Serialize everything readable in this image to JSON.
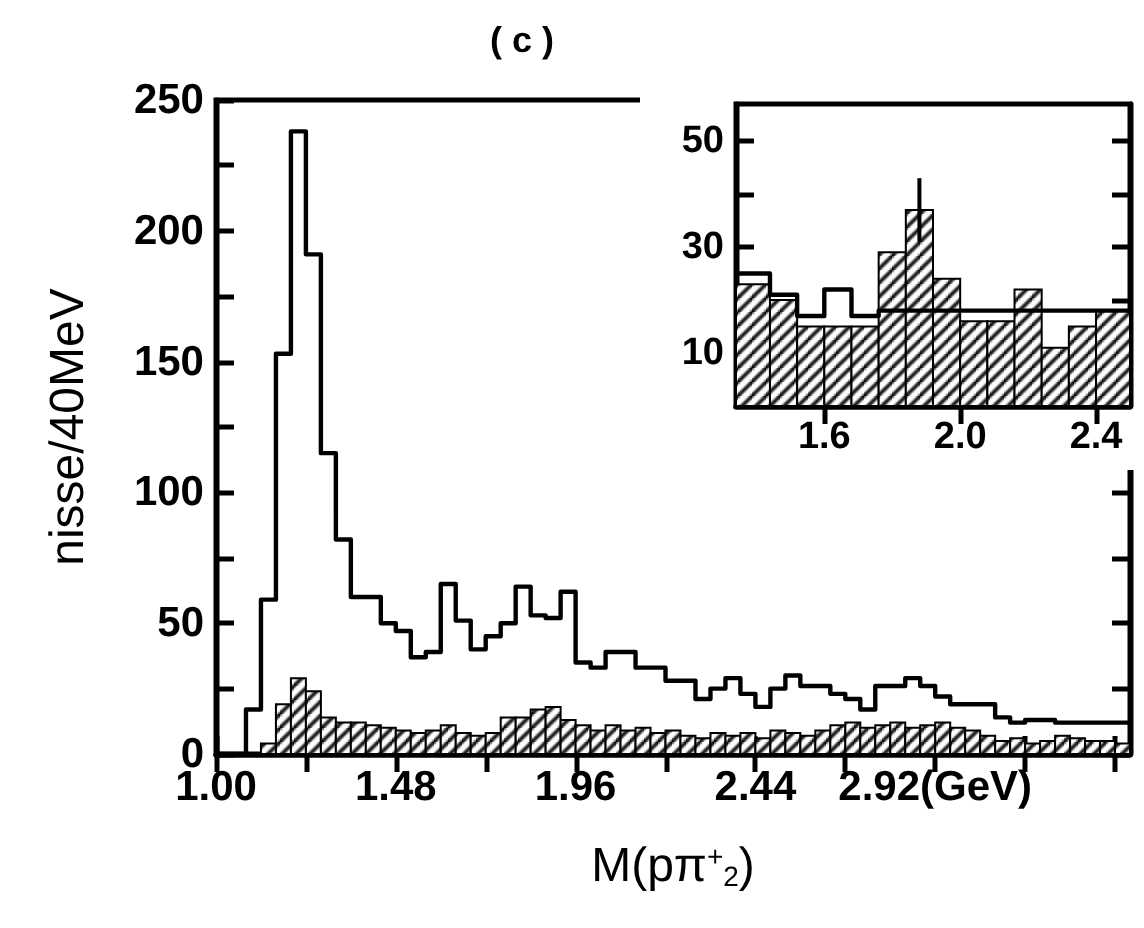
{
  "chart_data": [
    {
      "type": "histogram",
      "title": "( c )",
      "xlabel": "M(pπ$^{+}$$_{2}$)",
      "ylabel": "nisse/40MeV",
      "bins": [
        1.0,
        1.04,
        1.08,
        1.12,
        1.16,
        1.2,
        1.24,
        1.28,
        1.32,
        1.36,
        1.4,
        1.44,
        1.48,
        1.52,
        1.56,
        1.6,
        1.64,
        1.68,
        1.72,
        1.76,
        1.8,
        1.84,
        1.88,
        1.92,
        1.96,
        2.0,
        2.04,
        2.08,
        2.12,
        2.16,
        2.2,
        2.24,
        2.28,
        2.32,
        2.36,
        2.4,
        2.44,
        2.48,
        2.52,
        2.56,
        2.6,
        2.64,
        2.68,
        2.72,
        2.76,
        2.8,
        2.84,
        2.88,
        2.92,
        2.96,
        3.0,
        3.04,
        3.08,
        3.12,
        3.16,
        3.2,
        3.24,
        3.28,
        3.32,
        3.36,
        3.4,
        3.44
      ],
      "series": [
        {
          "type": "step",
          "color": "#000000",
          "x": [
            1.0,
            1.04,
            1.08,
            1.12,
            1.16,
            1.2,
            1.24,
            1.28,
            1.32,
            1.36,
            1.4,
            1.44,
            1.48,
            1.52,
            1.56,
            1.6,
            1.64,
            1.68,
            1.72,
            1.76,
            1.8,
            1.84,
            1.88,
            1.92,
            1.96,
            2.0,
            2.04,
            2.08,
            2.12,
            2.16,
            2.2,
            2.24,
            2.28,
            2.32,
            2.36,
            2.4,
            2.44,
            2.48,
            2.52,
            2.56,
            2.6,
            2.64,
            2.68,
            2.72,
            2.76,
            2.8,
            2.84,
            2.88,
            2.92,
            2.96,
            3.0,
            3.04,
            3.08,
            3.12,
            3.16,
            3.2,
            3.24,
            3.28,
            3.32,
            3.36,
            3.4,
            3.44
          ],
          "values": [
            0,
            0,
            17,
            59,
            153,
            238,
            191,
            115,
            82,
            60,
            60,
            50,
            47,
            37,
            39,
            65,
            51,
            40,
            45,
            50,
            64,
            53,
            52,
            62,
            35,
            33,
            39,
            39,
            33,
            33,
            28,
            28,
            21,
            25,
            29,
            23,
            18,
            25,
            30,
            26,
            26,
            23,
            21,
            17,
            26,
            26,
            29,
            26,
            22,
            19,
            19,
            19,
            14,
            12,
            13,
            13,
            12,
            12,
            12,
            12,
            12,
            12
          ]
        },
        {
          "type": "histogram",
          "color": "#000000",
          "values": [
            0,
            0,
            0,
            4,
            19,
            29,
            24,
            14,
            12,
            12,
            11,
            10,
            9,
            8,
            9,
            11,
            8,
            7,
            8,
            14,
            14,
            17,
            18,
            13,
            11,
            9,
            11,
            9,
            10,
            8,
            9,
            7,
            6,
            8,
            7,
            8,
            6,
            9,
            8,
            7,
            9,
            11,
            12,
            10,
            11,
            12,
            10,
            11,
            12,
            10,
            9,
            7,
            5,
            6,
            4,
            5,
            7,
            6,
            5,
            5,
            4
          ]
        }
      ],
      "xlim": [
        1.0,
        3.44
      ],
      "xticks": [
        {
          "value": 1.0,
          "label": "1.00"
        },
        {
          "value": 1.24,
          "label": null
        },
        1.48,
        {
          "value": 1.72,
          "label": null
        },
        1.96,
        {
          "value": 2.2,
          "label": null
        },
        2.44,
        {
          "value": 2.68,
          "label": null
        },
        {
          "value": 2.92,
          "label": "2.92(GeV)"
        },
        {
          "value": 3.16,
          "label": null
        },
        {
          "value": 3.4,
          "label": null
        }
      ],
      "ylim": [
        0,
        250
      ],
      "yticks": [
        0,
        {
          "value": 25,
          "label": null
        },
        50,
        {
          "value": 75,
          "label": null
        },
        100,
        {
          "value": 125,
          "label": null
        },
        150,
        {
          "value": 175,
          "label": null
        },
        200,
        {
          "value": 225,
          "label": null
        },
        250
      ]
    },
    {
      "type": "histogram",
      "bins": [
        1.34,
        1.44,
        1.52,
        1.6,
        1.68,
        1.76,
        1.84,
        1.92,
        2.0,
        2.08,
        2.16,
        2.24,
        2.32,
        2.4,
        2.5
      ],
      "series": [
        {
          "type": "step",
          "color": "#000000",
          "x": [
            1.34,
            1.44,
            1.52,
            1.6,
            1.68,
            1.76,
            1.84,
            1.92,
            2.0,
            2.08,
            2.16,
            2.24,
            2.32,
            2.4,
            2.5
          ],
          "values": [
            25,
            21,
            17,
            22,
            17,
            18,
            18,
            18,
            18,
            18,
            18,
            18,
            18,
            18,
            18
          ]
        },
        {
          "type": "histogram",
          "color": "#000000",
          "values": [
            23,
            20,
            15,
            15,
            15,
            29,
            37,
            24,
            16,
            16,
            22,
            11,
            15,
            18
          ],
          "errors": [
            null,
            null,
            null,
            null,
            null,
            null,
            6,
            null,
            null,
            null,
            null,
            null,
            null,
            null
          ]
        }
      ],
      "xlim": [
        1.34,
        2.5
      ],
      "xticks": [
        1.6,
        {
          "value": 2.0,
          "label": "2.0"
        },
        2.4
      ],
      "ylim": [
        0,
        57
      ],
      "yticks": [
        10,
        {
          "value": 20,
          "label": null
        },
        30,
        {
          "value": 40,
          "label": null
        },
        50
      ]
    }
  ]
}
